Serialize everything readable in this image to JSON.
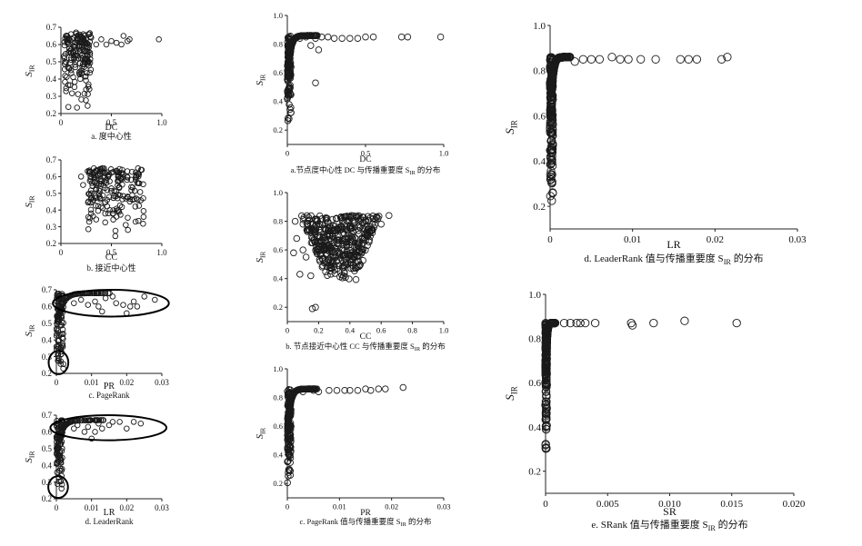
{
  "chart_data": [
    {
      "type": "scatter",
      "xlabel": "DC",
      "ylabel": "S",
      "ylabel_sub": "IR",
      "caption": "a. 度中心性",
      "xlim": [
        0,
        1.0
      ],
      "ylim": [
        0.2,
        0.7
      ],
      "xticks": [
        "0",
        "0.5",
        "1.0"
      ],
      "yticks": [
        "0.2",
        "0.3",
        "0.4",
        "0.5",
        "0.6",
        "0.7"
      ],
      "shape": "band",
      "dist": {
        "x0": 0.03,
        "x1": 0.3,
        "ymin": 0.22,
        "ymax": 0.67,
        "n": 170
      },
      "points": [
        [
          0.05,
          0.65
        ],
        [
          0.1,
          0.66
        ],
        [
          0.15,
          0.67
        ],
        [
          0.3,
          0.64
        ],
        [
          0.35,
          0.6
        ],
        [
          0.4,
          0.63
        ],
        [
          0.45,
          0.6
        ],
        [
          0.5,
          0.62
        ],
        [
          0.55,
          0.61
        ],
        [
          0.6,
          0.6
        ],
        [
          0.62,
          0.65
        ],
        [
          0.66,
          0.62
        ],
        [
          0.68,
          0.63
        ],
        [
          0.97,
          0.63
        ]
      ]
    },
    {
      "type": "scatter",
      "xlabel": "CC",
      "ylabel": "S",
      "ylabel_sub": "IR",
      "caption": "b. 接近中心性",
      "xlim": [
        0,
        1.0
      ],
      "ylim": [
        0.2,
        0.7
      ],
      "xticks": [
        "0",
        "0.5",
        "1.0"
      ],
      "yticks": [
        "0.2",
        "0.3",
        "0.4",
        "0.5",
        "0.6",
        "0.7"
      ],
      "shape": "band",
      "dist": {
        "x0": 0.25,
        "x1": 0.82,
        "ymin": 0.22,
        "ymax": 0.66,
        "n": 200
      },
      "points": [
        [
          0.2,
          0.6
        ],
        [
          0.22,
          0.55
        ],
        [
          0.28,
          0.62
        ],
        [
          0.33,
          0.6
        ],
        [
          0.35,
          0.52
        ],
        [
          0.3,
          0.5
        ],
        [
          0.38,
          0.48
        ],
        [
          0.3,
          0.38
        ],
        [
          0.28,
          0.33
        ],
        [
          0.4,
          0.42
        ]
      ]
    },
    {
      "type": "scatter",
      "xlabel": "PR",
      "ylabel": "S",
      "ylabel_sub": "IR",
      "caption": "c. PageRank",
      "xlim": [
        0,
        0.03
      ],
      "ylim": [
        0.2,
        0.7
      ],
      "xticks": [
        "0",
        "0.01",
        "0.02",
        "0.03"
      ],
      "yticks": [
        "0.2",
        "0.3",
        "0.4",
        "0.5",
        "0.6",
        "0.7"
      ],
      "shape": "knee",
      "dist": {
        "xs": 0.0025,
        "ymin": 0.22,
        "ymax": 0.68,
        "n": 200
      },
      "points": [
        [
          0.005,
          0.62
        ],
        [
          0.007,
          0.64
        ],
        [
          0.009,
          0.61
        ],
        [
          0.011,
          0.63
        ],
        [
          0.012,
          0.6
        ],
        [
          0.014,
          0.65
        ],
        [
          0.016,
          0.66
        ],
        [
          0.017,
          0.62
        ],
        [
          0.019,
          0.61
        ],
        [
          0.02,
          0.56
        ],
        [
          0.021,
          0.6
        ],
        [
          0.022,
          0.63
        ],
        [
          0.023,
          0.6
        ],
        [
          0.025,
          0.66
        ],
        [
          0.028,
          0.64
        ],
        [
          0.013,
          0.57
        ]
      ],
      "ellipses": [
        {
          "cx": 0.0155,
          "cy": 0.62,
          "rx": 0.0165,
          "ry": 0.08
        },
        {
          "cx": 0.0006,
          "cy": 0.265,
          "rx": 0.0028,
          "ry": 0.07
        }
      ]
    },
    {
      "type": "scatter",
      "xlabel": "LR",
      "ylabel": "S",
      "ylabel_sub": "IR",
      "caption": "d. LeaderRank",
      "xlim": [
        0,
        0.03
      ],
      "ylim": [
        0.2,
        0.7
      ],
      "xticks": [
        "0",
        "0.01",
        "0.02",
        "0.03"
      ],
      "yticks": [
        "0.2",
        "0.3",
        "0.4",
        "0.5",
        "0.6",
        "0.7"
      ],
      "shape": "knee",
      "dist": {
        "xs": 0.0022,
        "ymin": 0.23,
        "ymax": 0.67,
        "n": 200
      },
      "points": [
        [
          0.005,
          0.62
        ],
        [
          0.006,
          0.64
        ],
        [
          0.008,
          0.6
        ],
        [
          0.009,
          0.63
        ],
        [
          0.011,
          0.6
        ],
        [
          0.012,
          0.65
        ],
        [
          0.013,
          0.62
        ],
        [
          0.015,
          0.64
        ],
        [
          0.016,
          0.66
        ],
        [
          0.018,
          0.66
        ],
        [
          0.02,
          0.62
        ],
        [
          0.022,
          0.66
        ],
        [
          0.024,
          0.65
        ],
        [
          0.01,
          0.56
        ]
      ],
      "ellipses": [
        {
          "cx": 0.0148,
          "cy": 0.625,
          "rx": 0.0165,
          "ry": 0.075
        },
        {
          "cx": 0.0005,
          "cy": 0.27,
          "rx": 0.0028,
          "ry": 0.065
        }
      ]
    },
    {
      "type": "scatter",
      "xlabel": "DC",
      "ylabel": "S",
      "ylabel_sub": "IR",
      "caption": "a.节点度中心性 DC 与传播重要度 S",
      "caption_sub": "IR",
      "caption_tail": " 的分布",
      "xlim": [
        0,
        1.0
      ],
      "ylim": [
        0.1,
        1.0
      ],
      "xticks": [
        "0",
        "0.5",
        "1.0"
      ],
      "yticks": [
        "0.2",
        "0.4",
        "0.6",
        "0.8",
        "1.0"
      ],
      "shape": "knee",
      "dist": {
        "xs": 0.03,
        "ymin": 0.2,
        "ymax": 0.86,
        "n": 320
      },
      "points": [
        [
          0.08,
          0.84
        ],
        [
          0.12,
          0.85
        ],
        [
          0.18,
          0.84
        ],
        [
          0.22,
          0.85
        ],
        [
          0.26,
          0.85
        ],
        [
          0.3,
          0.84
        ],
        [
          0.35,
          0.84
        ],
        [
          0.4,
          0.84
        ],
        [
          0.45,
          0.84
        ],
        [
          0.5,
          0.85
        ],
        [
          0.55,
          0.85
        ],
        [
          0.73,
          0.85
        ],
        [
          0.77,
          0.85
        ],
        [
          0.98,
          0.85
        ],
        [
          0.18,
          0.53
        ],
        [
          0.2,
          0.76
        ],
        [
          0.15,
          0.79
        ]
      ]
    },
    {
      "type": "scatter",
      "xlabel": "CC",
      "ylabel": "S",
      "ylabel_sub": "IR",
      "caption": "b. 节点接近中心性 CC 与传播重要度 S",
      "caption_sub": "IR",
      "caption_tail": " 的分布",
      "xlim": [
        0,
        1.0
      ],
      "ylim": [
        0.1,
        1.0
      ],
      "xticks": [
        "0",
        "0.2",
        "0.4",
        "0.6",
        "0.8",
        "1.0"
      ],
      "yticks": [
        "0.2",
        "0.4",
        "0.6",
        "0.8",
        "1.0"
      ],
      "shape": "fan",
      "dist": {
        "xc": 0.34,
        "ymin": 0.18,
        "ymax": 0.84,
        "n": 420
      },
      "points": [
        [
          0.04,
          0.58
        ],
        [
          0.06,
          0.68
        ],
        [
          0.05,
          0.8
        ],
        [
          0.1,
          0.6
        ],
        [
          0.12,
          0.55
        ],
        [
          0.08,
          0.43
        ],
        [
          0.1,
          0.78
        ],
        [
          0.15,
          0.42
        ],
        [
          0.65,
          0.84
        ],
        [
          0.6,
          0.78
        ],
        [
          0.58,
          0.82
        ],
        [
          0.16,
          0.19
        ],
        [
          0.18,
          0.2
        ]
      ]
    },
    {
      "type": "scatter",
      "xlabel": "PR",
      "ylabel": "S",
      "ylabel_sub": "IR",
      "caption": "c. PageRank 值与传播重要度 S",
      "caption_sub": "IR",
      "caption_tail": " 的分布",
      "xlim": [
        0,
        0.03
      ],
      "ylim": [
        0.1,
        1.0
      ],
      "xticks": [
        "0",
        "0.01",
        "0.02",
        "0.03"
      ],
      "yticks": [
        "0.2",
        "0.4",
        "0.6",
        "0.8",
        "1.0"
      ],
      "shape": "knee",
      "dist": {
        "xs": 0.0009,
        "ymin": 0.2,
        "ymax": 0.86,
        "n": 320
      },
      "points": [
        [
          0.003,
          0.84
        ],
        [
          0.005,
          0.85
        ],
        [
          0.006,
          0.84
        ],
        [
          0.008,
          0.85
        ],
        [
          0.0095,
          0.85
        ],
        [
          0.011,
          0.85
        ],
        [
          0.012,
          0.85
        ],
        [
          0.0135,
          0.85
        ],
        [
          0.015,
          0.86
        ],
        [
          0.016,
          0.85
        ],
        [
          0.0175,
          0.86
        ],
        [
          0.0188,
          0.86
        ],
        [
          0.0222,
          0.87
        ]
      ]
    },
    {
      "type": "scatter",
      "xlabel": "LR",
      "ylabel": "S",
      "ylabel_sub": "IR",
      "caption": "d. LeaderRank 值与传播重要度 S",
      "caption_sub": "IR",
      "caption_tail": " 的分布",
      "xlim": [
        0,
        0.03
      ],
      "ylim": [
        0.1,
        1.0
      ],
      "xticks": [
        "0",
        "0.01",
        "0.02",
        "0.03"
      ],
      "yticks": [
        "0.2",
        "0.4",
        "0.6",
        "0.8",
        "1.0"
      ],
      "shape": "knee",
      "dist": {
        "xs": 0.0004,
        "ymin": 0.2,
        "ymax": 0.86,
        "n": 320
      },
      "points": [
        [
          0.003,
          0.84
        ],
        [
          0.004,
          0.85
        ],
        [
          0.005,
          0.85
        ],
        [
          0.006,
          0.85
        ],
        [
          0.0075,
          0.86
        ],
        [
          0.0085,
          0.85
        ],
        [
          0.0095,
          0.85
        ],
        [
          0.011,
          0.85
        ],
        [
          0.0128,
          0.85
        ],
        [
          0.0158,
          0.85
        ],
        [
          0.0168,
          0.85
        ],
        [
          0.0178,
          0.85
        ],
        [
          0.0208,
          0.85
        ],
        [
          0.0215,
          0.86
        ]
      ]
    },
    {
      "type": "scatter",
      "xlabel": "SR",
      "ylabel": "S",
      "ylabel_sub": "IR",
      "caption": "e. SRank 值与传播重要度 S",
      "caption_sub": "IR",
      "caption_tail": " 的分布",
      "xlim": [
        0,
        0.02
      ],
      "ylim": [
        0.1,
        1.0
      ],
      "xticks": [
        "0",
        "0.005",
        "0.010",
        "0.015",
        "0.020"
      ],
      "yticks": [
        "0.2",
        "0.4",
        "0.6",
        "0.8",
        "1.0"
      ],
      "shape": "knee",
      "dist": {
        "xs": 0.00012,
        "ymin": 0.27,
        "ymax": 0.87,
        "n": 320
      },
      "points": [
        [
          0.0015,
          0.87
        ],
        [
          0.002,
          0.87
        ],
        [
          0.0025,
          0.87
        ],
        [
          0.0028,
          0.87
        ],
        [
          0.0032,
          0.87
        ],
        [
          0.004,
          0.87
        ],
        [
          0.0069,
          0.87
        ],
        [
          0.007,
          0.86
        ],
        [
          0.0087,
          0.87
        ],
        [
          0.0112,
          0.88
        ],
        [
          0.0154,
          0.87
        ]
      ]
    }
  ]
}
